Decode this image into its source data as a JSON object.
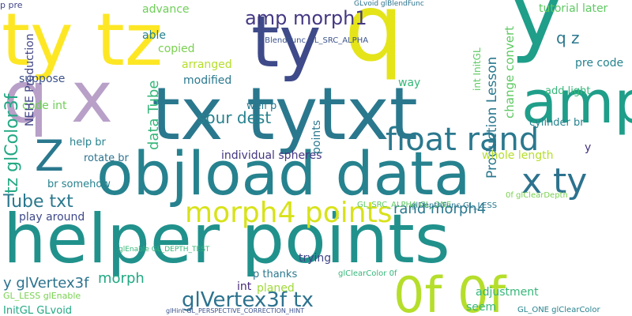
{
  "words": [
    {
      "text": "helper points",
      "color": "#21918c"
    },
    {
      "text": "objload data",
      "color": "#26828e"
    },
    {
      "text": "ty tz",
      "color": "#fde725"
    },
    {
      "text": "ty",
      "color": "#3e4a89"
    },
    {
      "text": "q",
      "color": "#e4e419"
    },
    {
      "text": "y",
      "color": "#1f9e89"
    },
    {
      "text": "q x",
      "color": "#b8a0c8"
    },
    {
      "text": "tx tytxt",
      "color": "#2a788e"
    },
    {
      "text": "amp",
      "color": "#1f9e89"
    },
    {
      "text": "Z",
      "color": "#2a788e"
    },
    {
      "text": "float rand",
      "color": "#2a788e"
    },
    {
      "text": "x ty",
      "color": "#2c728e"
    },
    {
      "text": "0f 0f",
      "color": "#b5de2b"
    },
    {
      "text": "morph4 points",
      "color": "#d8e219"
    },
    {
      "text": "glVertex3f tx",
      "color": "#2c728e"
    },
    {
      "text": "amp morph1",
      "color": "#443983"
    },
    {
      "text": "sour dest",
      "color": "#26828e"
    },
    {
      "text": "Tube txt",
      "color": "#2a788e"
    },
    {
      "text": "y glVertex3f",
      "color": "#2c728e"
    },
    {
      "text": "morph",
      "color": "#22a884"
    },
    {
      "text": "tz glColor3f",
      "color": "#22a884"
    },
    {
      "text": "data Tube",
      "color": "#35b779"
    },
    {
      "text": "rand morph4",
      "color": "#2a788e"
    },
    {
      "text": "q z",
      "color": "#2a788e"
    },
    {
      "text": "Production Lesson",
      "color": "#2a788e"
    },
    {
      "text": "pre code",
      "color": "#26828e"
    },
    {
      "text": "tutorial later",
      "color": "#5ec962"
    },
    {
      "text": "advance",
      "color": "#6ece58"
    },
    {
      "text": "able",
      "color": "#26828e"
    },
    {
      "text": "copied",
      "color": "#7ad151"
    },
    {
      "text": "arranged",
      "color": "#b5de2b"
    },
    {
      "text": "modified",
      "color": "#2a788e"
    },
    {
      "text": "suppose",
      "color": "#3b528b"
    },
    {
      "text": "code int",
      "color": "#6ece58"
    },
    {
      "text": "help br",
      "color": "#26828e"
    },
    {
      "text": "rotate br",
      "color": "#2c728e"
    },
    {
      "text": "br somehow",
      "color": "#26828e"
    },
    {
      "text": "play around",
      "color": "#3e4989"
    },
    {
      "text": "individual spheres",
      "color": "#453781"
    },
    {
      "text": "trying",
      "color": "#414487"
    },
    {
      "text": "p thanks",
      "color": "#2a788e"
    },
    {
      "text": "planed",
      "color": "#a0da39"
    },
    {
      "text": "int",
      "color": "#482878"
    },
    {
      "text": "well p",
      "color": "#2a788e"
    },
    {
      "text": "way",
      "color": "#35b779"
    },
    {
      "text": "whole length",
      "color": "#b5de2b"
    },
    {
      "text": "adjustment",
      "color": "#35b779"
    },
    {
      "text": "seem",
      "color": "#35b779"
    },
    {
      "text": "add light",
      "color": "#35b779"
    },
    {
      "text": "cylinder br",
      "color": "#26828e"
    },
    {
      "text": "change convert",
      "color": "#5ec962"
    },
    {
      "text": "points",
      "color": "#2a788e"
    },
    {
      "text": "InitGL GLvoid",
      "color": "#22a884"
    },
    {
      "text": "GL_LESS glEnable",
      "color": "#7ad151"
    },
    {
      "text": "NEHE Production",
      "color": "#414487"
    },
    {
      "text": "y",
      "color": "#46327e"
    },
    {
      "text": "glBlendFunc GL_SRC_ALPHA",
      "color": "#3b528b"
    },
    {
      "text": "GLvoid glBlendFunc",
      "color": "#2c728e"
    },
    {
      "text": "glEnable GL_DEPTH_TEST",
      "color": "#35b779"
    },
    {
      "text": "GL_SRC_ALPHA GL_ONE",
      "color": "#5ec962"
    },
    {
      "text": "glDepthFunc GL_LESS",
      "color": "#2a788e"
    },
    {
      "text": "glHint GL_PERSPECTIVE_CORRECTION_HINT",
      "color": "#3b528b"
    },
    {
      "text": "GL_ONE glClearColor",
      "color": "#26828e"
    },
    {
      "text": "glClearColor 0f",
      "color": "#35b779"
    },
    {
      "text": "0f glClearDepth",
      "color": "#7ad151"
    },
    {
      "text": "int InitGL",
      "color": "#5ec962"
    },
    {
      "text": "p pre",
      "color": "#414487"
    }
  ]
}
